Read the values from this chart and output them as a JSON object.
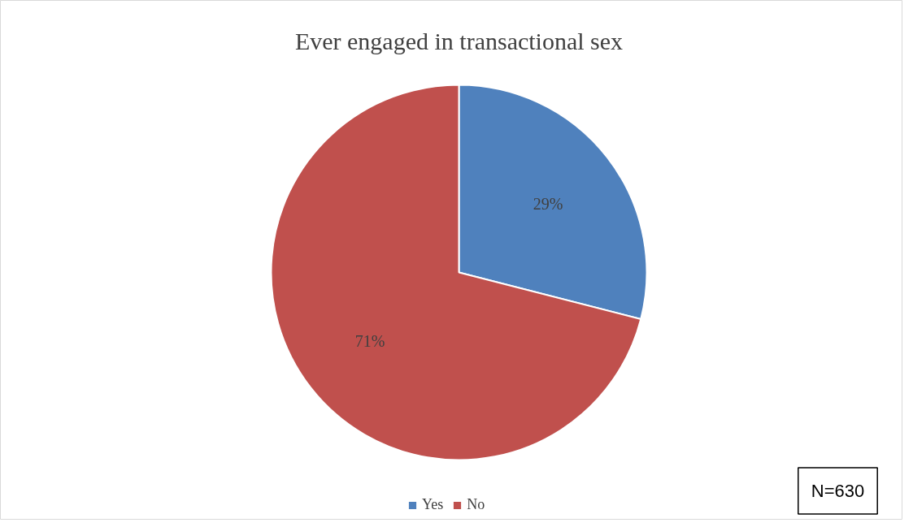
{
  "chart_data": {
    "type": "pie",
    "title": "Ever engaged in transactional sex",
    "categories": [
      "Yes",
      "No"
    ],
    "values": [
      29,
      71
    ],
    "colors": [
      "#4f81bd",
      "#c0504d"
    ],
    "value_labels": [
      "29%",
      "71%"
    ],
    "legend": "bottom",
    "annotations": [
      "N=630"
    ]
  }
}
